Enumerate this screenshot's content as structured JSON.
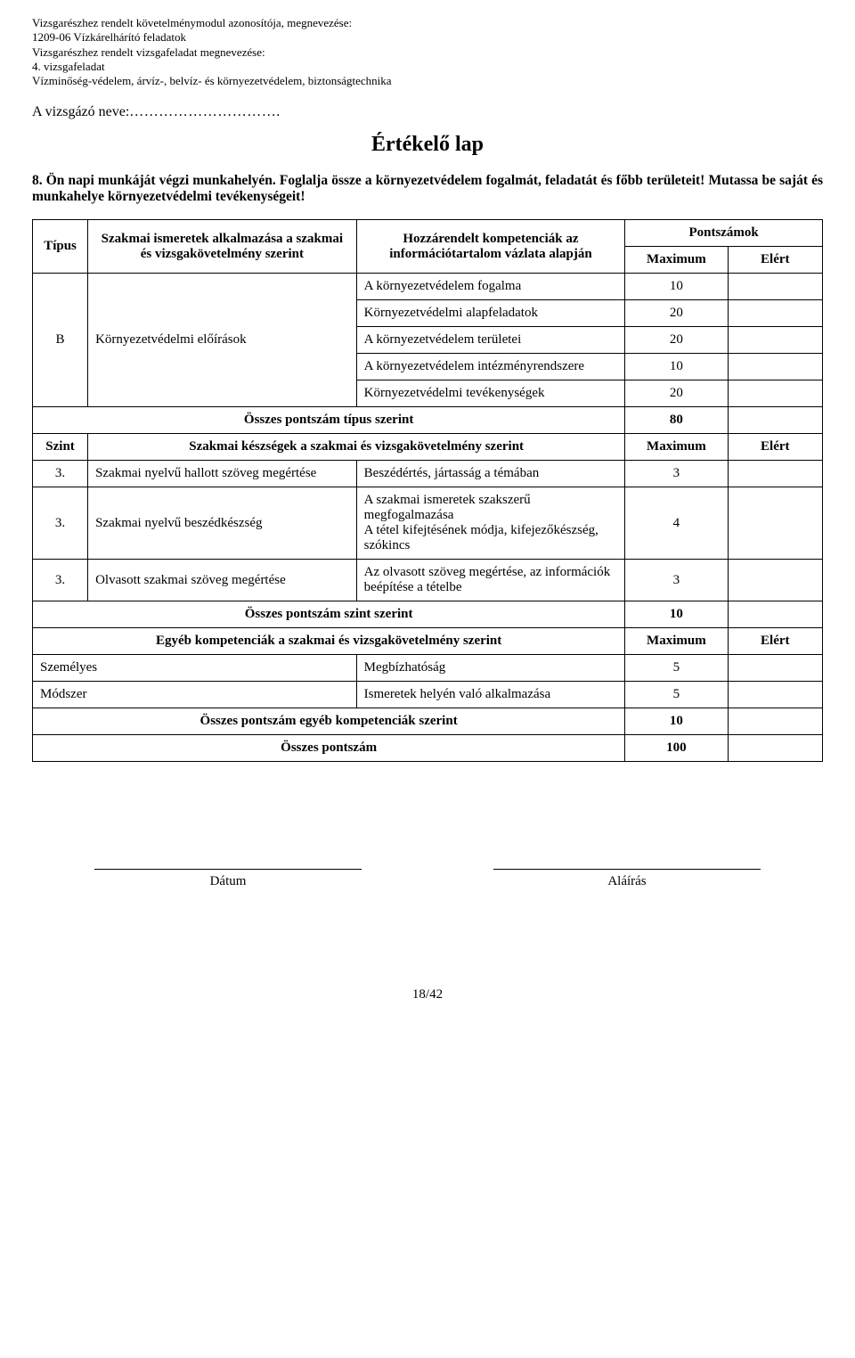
{
  "header": {
    "l1": "Vizsgarészhez rendelt követelménymodul azonosítója, megnevezése:",
    "l2": "1209-06 Vízkárelhárító feladatok",
    "l3": "Vizsgarészhez rendelt vizsgafeladat megnevezése:",
    "l4": "4. vizsgafeladat",
    "l5": "Vízminőség-védelem, árvíz-, belvíz- és környezetvédelem, biztonságtechnika"
  },
  "name_label": "A vizsgázó neve:",
  "name_dots": "………………………….",
  "title": "Értékelő lap",
  "question": {
    "num": "8.",
    "text": "Ön napi munkáját végzi munkahelyén. Foglalja össze a környezetvédelem fogalmát, feladatát és főbb területeit! Mutassa be saját és munkahelye környezetvédelmi tevékenységeit!"
  },
  "th": {
    "tipus": "Típus",
    "ismeretek": "Szakmai ismeretek alkalmazása a szakmai és vizsgakövetelmény szerint",
    "kompetenciak": "Hozzárendelt kompetenciák az információtartalom vázlata alapján",
    "pontszamok": "Pontszámok",
    "max": "Maximum",
    "elert": "Elért"
  },
  "r": {
    "tipus_b": "B",
    "ismeret_b": "Környezetvédelmi előírások",
    "k1": "A környezetvédelem fogalma",
    "m1": "10",
    "k2": "Környezetvédelmi alapfeladatok",
    "m2": "20",
    "k3": "A környezetvédelem területei",
    "m3": "20",
    "k4": "A környezetvédelem intézményrendszere",
    "m4": "10",
    "k5": "Környezetvédelmi tevékenységek",
    "m5": "20"
  },
  "totals": {
    "tipus_label": "Összes pontszám típus szerint",
    "tipus_val": "80",
    "szint_label": "Összes pontszám szint szerint",
    "szint_val": "10",
    "egyeb_label": "Összes pontszám egyéb kompetenciák szerint",
    "egyeb_val": "10",
    "grand_label": "Összes pontszám",
    "grand_val": "100"
  },
  "szint": {
    "header": "Szint",
    "skills_header": "Szakmai készségek a szakmai és vizsgakövetelmény szerint",
    "max": "Maximum",
    "elert": "Elért",
    "s1_lvl": "3.",
    "s1_skill": "Szakmai nyelvű hallott szöveg megértése",
    "s1_desc": "Beszédértés, jártasság a témában",
    "s1_max": "3",
    "s2_lvl": "3.",
    "s2_skill": "Szakmai nyelvű beszédkészség",
    "s2_desc": "A szakmai ismeretek szakszerű megfogalmazása\nA tétel kifejtésének módja, kifejezőkészség, szókincs",
    "s2_max": "4",
    "s3_lvl": "3.",
    "s3_skill": "Olvasott szakmai szöveg megértése",
    "s3_desc": "Az olvasott szöveg megértése, az információk beépítése a tételbe",
    "s3_max": "3"
  },
  "egyeb": {
    "header": "Egyéb kompetenciák a szakmai és vizsgakövetelmény szerint",
    "max": "Maximum",
    "elert": "Elért",
    "e1_cat": "Személyes",
    "e1_desc": "Megbízhatóság",
    "e1_max": "5",
    "e2_cat": "Módszer",
    "e2_desc": "Ismeretek helyén való alkalmazása",
    "e2_max": "5"
  },
  "sig": {
    "date": "Dátum",
    "sign": "Aláírás"
  },
  "pagenum": "18/42"
}
